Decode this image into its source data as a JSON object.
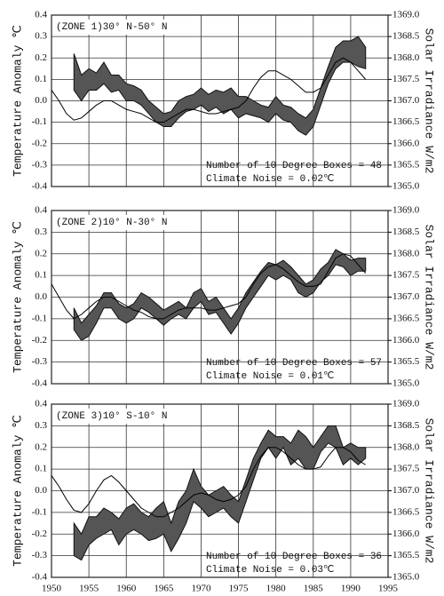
{
  "chart_data": [
    {
      "type": "line",
      "title": "(ZONE 1)30° N-50° N",
      "annotations": [
        "Number of 10 Degree Boxes = 48",
        "Climate Noise = 0.02℃"
      ],
      "ylabel": "Temperature Anomaly ℃",
      "y2label": "Solar Irradiance W/m2",
      "x": [
        1950,
        1951,
        1952,
        1953,
        1954,
        1955,
        1956,
        1957,
        1958,
        1959,
        1960,
        1961,
        1962,
        1963,
        1964,
        1965,
        1966,
        1967,
        1968,
        1969,
        1970,
        1971,
        1972,
        1973,
        1974,
        1975,
        1976,
        1977,
        1978,
        1979,
        1980,
        1981,
        1982,
        1983,
        1984,
        1985,
        1986,
        1987,
        1988,
        1989,
        1990,
        1991,
        1992
      ],
      "xlim": [
        1950,
        1995
      ],
      "xticks": [
        1950,
        1955,
        1960,
        1965,
        1970,
        1975,
        1980,
        1985,
        1990,
        1995
      ],
      "ylim": [
        -0.4,
        0.4
      ],
      "yticks": [
        0.4,
        0.3,
        0.2,
        0.1,
        {
          "value": 0,
          "label": "0.0"
        },
        -0.1,
        -0.2,
        -0.3,
        -0.4
      ],
      "y2lim": [
        1365,
        1369
      ],
      "y2ticks": [
        {
          "value": 1369,
          "label": "1369.0"
        },
        1368.5,
        {
          "value": 1368,
          "label": "1368.0"
        },
        1367.5,
        {
          "value": 1367,
          "label": "1367.0"
        },
        1366.5,
        {
          "value": 1366,
          "label": "1366.0"
        },
        1365.5,
        {
          "value": 1365,
          "label": "1365.0"
        }
      ],
      "grid": true,
      "series": [
        {
          "color": "#555555",
          "lower": [
            null,
            null,
            null,
            0.05,
            0.0,
            0.05,
            0.05,
            0.08,
            0.04,
            0.05,
            0.0,
            0.0,
            -0.02,
            -0.06,
            -0.1,
            -0.12,
            -0.12,
            -0.08,
            -0.05,
            -0.04,
            -0.02,
            -0.05,
            -0.03,
            -0.06,
            -0.04,
            -0.08,
            -0.06,
            -0.07,
            -0.08,
            -0.1,
            -0.06,
            -0.09,
            -0.1,
            -0.14,
            -0.16,
            -0.12,
            -0.02,
            0.08,
            0.15,
            0.18,
            0.18,
            0.16,
            0.15
          ],
          "upper": [
            null,
            null,
            null,
            0.22,
            0.12,
            0.15,
            0.13,
            0.18,
            0.12,
            0.12,
            0.08,
            0.07,
            0.05,
            0.0,
            -0.03,
            -0.06,
            -0.05,
            0.0,
            0.02,
            0.03,
            0.06,
            0.03,
            0.05,
            0.04,
            0.06,
            0.02,
            0.02,
            0.0,
            -0.02,
            -0.03,
            0.02,
            -0.02,
            -0.03,
            -0.06,
            -0.08,
            -0.04,
            0.06,
            0.16,
            0.25,
            0.28,
            0.28,
            0.3,
            0.25
          ]
        },
        {
          "color": "#000000",
          "axis": "y2",
          "values": [
            1367.25,
            1367.0,
            1366.7,
            1366.55,
            1366.6,
            1366.75,
            1366.9,
            1367.0,
            1367.0,
            1366.9,
            1366.8,
            1366.75,
            1366.7,
            1366.6,
            1366.5,
            1366.5,
            1366.6,
            1366.7,
            1366.8,
            1366.8,
            1366.75,
            1366.7,
            1366.7,
            1366.75,
            1366.8,
            1366.85,
            1367.0,
            1367.3,
            1367.55,
            1367.7,
            1367.7,
            1367.6,
            1367.5,
            1367.35,
            1367.2,
            1367.2,
            1367.3,
            1367.6,
            1367.9,
            1368.0,
            1367.9,
            1367.7,
            1367.5
          ]
        }
      ]
    },
    {
      "type": "line",
      "title": "(ZONE 2)10° N-30° N",
      "annotations": [
        "Number of 10 Degree Boxes = 57",
        "Climate Noise = 0.01℃"
      ],
      "ylabel": "Temperature Anomaly ℃",
      "y2label": "Solar Irradiance W/m2",
      "x": [
        1950,
        1951,
        1952,
        1953,
        1954,
        1955,
        1956,
        1957,
        1958,
        1959,
        1960,
        1961,
        1962,
        1963,
        1964,
        1965,
        1966,
        1967,
        1968,
        1969,
        1970,
        1971,
        1972,
        1973,
        1974,
        1975,
        1976,
        1977,
        1978,
        1979,
        1980,
        1981,
        1982,
        1983,
        1984,
        1985,
        1986,
        1987,
        1988,
        1989,
        1990,
        1991,
        1992
      ],
      "xlim": [
        1950,
        1995
      ],
      "xticks": [
        1950,
        1955,
        1960,
        1965,
        1970,
        1975,
        1980,
        1985,
        1990,
        1995
      ],
      "ylim": [
        -0.4,
        0.4
      ],
      "yticks": [
        0.4,
        0.3,
        0.2,
        0.1,
        {
          "value": 0,
          "label": "0.0"
        },
        -0.1,
        -0.2,
        -0.3,
        -0.4
      ],
      "y2lim": [
        1365,
        1369
      ],
      "y2ticks": [
        {
          "value": 1369,
          "label": "1369.0"
        },
        1368.5,
        {
          "value": 1368,
          "label": "1368.0"
        },
        1367.5,
        {
          "value": 1367,
          "label": "1367.0"
        },
        1366.5,
        {
          "value": 1366,
          "label": "1366.0"
        },
        1365.5,
        {
          "value": 1365,
          "label": "1365.0"
        }
      ],
      "grid": true,
      "series": [
        {
          "color": "#555555",
          "lower": [
            null,
            null,
            null,
            -0.15,
            -0.2,
            -0.18,
            -0.12,
            -0.05,
            -0.05,
            -0.1,
            -0.12,
            -0.1,
            -0.05,
            -0.07,
            -0.1,
            -0.13,
            -0.1,
            -0.08,
            -0.1,
            -0.05,
            -0.02,
            -0.08,
            -0.07,
            -0.12,
            -0.17,
            -0.12,
            -0.05,
            0.0,
            0.05,
            0.1,
            0.08,
            0.1,
            0.08,
            0.02,
            0.0,
            0.02,
            0.07,
            0.1,
            0.15,
            0.14,
            0.1,
            0.12,
            0.12
          ],
          "upper": [
            null,
            null,
            null,
            -0.05,
            -0.12,
            -0.08,
            -0.04,
            0.02,
            0.02,
            -0.03,
            -0.05,
            -0.03,
            0.02,
            0.0,
            -0.03,
            -0.06,
            -0.04,
            -0.02,
            -0.05,
            0.02,
            0.04,
            -0.02,
            0.0,
            -0.05,
            -0.1,
            -0.05,
            0.02,
            0.07,
            0.12,
            0.16,
            0.15,
            0.17,
            0.14,
            0.1,
            0.06,
            0.08,
            0.13,
            0.16,
            0.22,
            0.2,
            0.17,
            0.18,
            0.18
          ]
        },
        {
          "color": "#000000",
          "axis": "y2",
          "values": [
            1367.3,
            1367.0,
            1366.7,
            1366.5,
            1366.6,
            1366.75,
            1366.9,
            1367.0,
            1367.0,
            1366.9,
            1366.8,
            1366.7,
            1366.65,
            1366.55,
            1366.5,
            1366.5,
            1366.6,
            1366.7,
            1366.75,
            1366.75,
            1366.75,
            1366.7,
            1366.7,
            1366.75,
            1366.8,
            1366.85,
            1367.0,
            1367.3,
            1367.55,
            1367.7,
            1367.75,
            1367.65,
            1367.5,
            1367.35,
            1367.25,
            1367.25,
            1367.3,
            1367.6,
            1367.9,
            1368.0,
            1367.95,
            1367.75,
            1367.55
          ]
        }
      ]
    },
    {
      "type": "line",
      "title": "(ZONE 3)10° S-10° N",
      "annotations": [
        "Number of 10 Degree Boxes = 36",
        "Climate Noise = 0.03℃"
      ],
      "ylabel": "Temperature Anomaly ℃",
      "y2label": "Solar Irradiance W/m2",
      "x": [
        1950,
        1951,
        1952,
        1953,
        1954,
        1955,
        1956,
        1957,
        1958,
        1959,
        1960,
        1961,
        1962,
        1963,
        1964,
        1965,
        1966,
        1967,
        1968,
        1969,
        1970,
        1971,
        1972,
        1973,
        1974,
        1975,
        1976,
        1977,
        1978,
        1979,
        1980,
        1981,
        1982,
        1983,
        1984,
        1985,
        1986,
        1987,
        1988,
        1989,
        1990,
        1991,
        1992
      ],
      "xlim": [
        1950,
        1995
      ],
      "xticks": [
        1950,
        1955,
        1960,
        1965,
        1970,
        1975,
        1980,
        1985,
        1990,
        1995
      ],
      "ylim": [
        -0.4,
        0.4
      ],
      "yticks": [
        0.4,
        0.3,
        0.2,
        0.1,
        {
          "value": 0,
          "label": "0.0"
        },
        -0.1,
        -0.2,
        -0.3,
        -0.4
      ],
      "y2lim": [
        1365,
        1369
      ],
      "y2ticks": [
        {
          "value": 1369,
          "label": "1369.0"
        },
        1368.5,
        {
          "value": 1368,
          "label": "1368.0"
        },
        1367.5,
        {
          "value": 1367,
          "label": "1367.0"
        },
        1366.5,
        {
          "value": 1366,
          "label": "1366.0"
        },
        1365.5,
        {
          "value": 1365,
          "label": "1365.0"
        }
      ],
      "grid": true,
      "series": [
        {
          "color": "#555555",
          "lower": [
            null,
            null,
            null,
            -0.3,
            -0.32,
            -0.25,
            -0.22,
            -0.2,
            -0.18,
            -0.25,
            -0.2,
            -0.18,
            -0.2,
            -0.23,
            -0.22,
            -0.2,
            -0.28,
            -0.22,
            -0.15,
            -0.05,
            -0.08,
            -0.12,
            -0.1,
            -0.08,
            -0.12,
            -0.15,
            -0.05,
            0.05,
            0.15,
            0.2,
            0.15,
            0.2,
            0.12,
            0.15,
            0.1,
            0.1,
            0.18,
            0.22,
            0.2,
            0.12,
            0.15,
            0.12,
            0.15
          ],
          "upper": [
            null,
            null,
            null,
            -0.15,
            -0.2,
            -0.12,
            -0.12,
            -0.08,
            -0.1,
            -0.13,
            -0.08,
            -0.06,
            -0.1,
            -0.12,
            -0.08,
            -0.05,
            -0.15,
            -0.05,
            0.0,
            0.1,
            0.02,
            -0.02,
            0.0,
            0.02,
            -0.02,
            -0.05,
            0.05,
            0.15,
            0.22,
            0.28,
            0.25,
            0.25,
            0.22,
            0.28,
            0.25,
            0.2,
            0.25,
            0.3,
            0.3,
            0.2,
            0.22,
            0.2,
            0.2
          ]
        },
        {
          "color": "#000000",
          "axis": "y2",
          "values": [
            1367.35,
            1367.1,
            1366.8,
            1366.55,
            1366.5,
            1366.7,
            1367.0,
            1367.25,
            1367.35,
            1367.2,
            1367.0,
            1366.8,
            1366.6,
            1366.5,
            1366.4,
            1366.4,
            1366.5,
            1366.6,
            1366.75,
            1366.9,
            1366.95,
            1366.9,
            1366.8,
            1366.75,
            1366.8,
            1366.9,
            1367.1,
            1367.5,
            1367.8,
            1368.0,
            1368.0,
            1367.9,
            1367.75,
            1367.6,
            1367.5,
            1367.5,
            1367.55,
            1367.8,
            1368.0,
            1368.0,
            1367.9,
            1367.7,
            1367.6
          ]
        }
      ]
    }
  ]
}
